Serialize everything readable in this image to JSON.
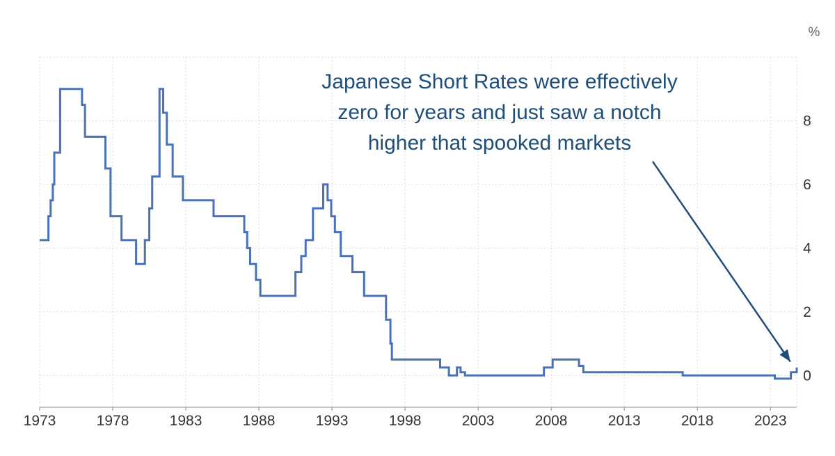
{
  "chart_data": {
    "type": "line",
    "title": "",
    "xlabel": "",
    "ylabel": "",
    "y_unit": "%",
    "xlim": [
      1973,
      2024.8
    ],
    "ylim": [
      -1,
      10
    ],
    "x_ticks": [
      1973,
      1978,
      1983,
      1988,
      1993,
      1998,
      2003,
      2008,
      2013,
      2018,
      2023
    ],
    "x_tick_labels": [
      "1973",
      "1978",
      "1983",
      "1988",
      "1993",
      "1998",
      "2003",
      "2008",
      "2013",
      "2018",
      "2023"
    ],
    "y_ticks": [
      0,
      2,
      4,
      6,
      8
    ],
    "y_tick_labels": [
      "0",
      "2",
      "4",
      "6",
      "8"
    ],
    "y_axis_position": "right",
    "grid": true,
    "line_style": "step",
    "series": [
      {
        "color": "#4a72b8",
        "x": [
          1973.0,
          1973.45,
          1973.6,
          1973.75,
          1973.9,
          1974.0,
          1974.4,
          1975.6,
          1975.9,
          1976.1,
          1977.5,
          1977.85,
          1978.6,
          1979.6,
          1979.9,
          1980.2,
          1980.5,
          1980.7,
          1981.2,
          1981.45,
          1981.7,
          1982.1,
          1982.8,
          1984.9,
          1987.0,
          1987.2,
          1987.4,
          1987.8,
          1988.1,
          1988.4,
          1990.5,
          1990.9,
          1991.2,
          1991.7,
          1992.4,
          1992.7,
          1992.95,
          1993.2,
          1993.6,
          1994.4,
          1995.2,
          1996.7,
          1997.0,
          1997.1,
          1999.9,
          2000.4,
          2001.0,
          2001.55,
          2001.8,
          2002.1,
          2007.0,
          2007.5,
          2008.1,
          2009.6,
          2009.9,
          2010.2,
          2012.0,
          2017.0,
          2023.3,
          2024.1,
          2024.4,
          2024.8
        ],
        "y": [
          4.25,
          4.25,
          5.0,
          5.5,
          6.0,
          7.0,
          9.0,
          9.0,
          8.5,
          7.5,
          6.5,
          5.0,
          4.25,
          3.5,
          3.5,
          4.25,
          5.25,
          6.25,
          9.0,
          8.25,
          7.25,
          6.25,
          5.5,
          5.0,
          4.5,
          4.0,
          3.5,
          3.0,
          2.5,
          2.5,
          3.25,
          3.75,
          4.25,
          5.25,
          6.0,
          5.5,
          5.0,
          4.5,
          3.75,
          3.25,
          2.5,
          1.75,
          1.0,
          0.5,
          0.5,
          0.25,
          0.0,
          0.25,
          0.1,
          0.0,
          0.0,
          0.25,
          0.5,
          0.5,
          0.3,
          0.1,
          0.1,
          0.0,
          -0.1,
          -0.1,
          0.1,
          0.25
        ]
      }
    ],
    "annotations": [
      {
        "lines": [
          "Japanese Short Rates were effectively",
          "zero for years and just saw a notch",
          "higher that spooked markets"
        ],
        "color": "#1f4e79",
        "arrow_target": [
          2024.6,
          0.3
        ]
      }
    ]
  }
}
